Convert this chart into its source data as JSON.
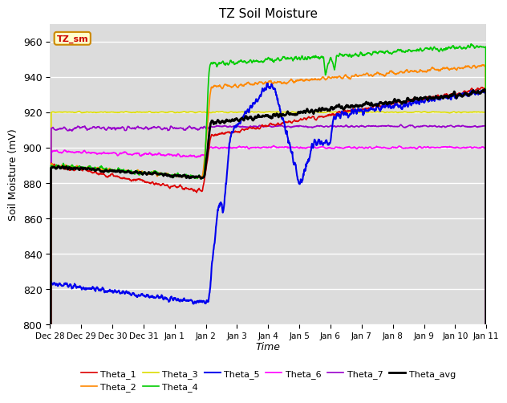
{
  "title": "TZ Soil Moisture",
  "ylabel": "Soil Moisture (mV)",
  "xlabel": "Time",
  "ylim": [
    800,
    970
  ],
  "yticks": [
    800,
    820,
    840,
    860,
    880,
    900,
    920,
    940,
    960
  ],
  "bg_color": "#dcdcdc",
  "fig_color": "#ffffff",
  "label_box": "TZ_sm",
  "series_order": [
    "Theta_1",
    "Theta_2",
    "Theta_3",
    "Theta_4",
    "Theta_5",
    "Theta_6",
    "Theta_7",
    "Theta_avg"
  ],
  "series": {
    "Theta_1": {
      "color": "#dd0000",
      "lw": 1.2
    },
    "Theta_2": {
      "color": "#ff8800",
      "lw": 1.2
    },
    "Theta_3": {
      "color": "#dddd00",
      "lw": 1.2
    },
    "Theta_4": {
      "color": "#00cc00",
      "lw": 1.2
    },
    "Theta_5": {
      "color": "#0000ee",
      "lw": 1.5
    },
    "Theta_6": {
      "color": "#ff00ff",
      "lw": 1.2
    },
    "Theta_7": {
      "color": "#9900cc",
      "lw": 1.2
    },
    "Theta_avg": {
      "color": "#000000",
      "lw": 2.0
    }
  },
  "legend_order": [
    "Theta_1",
    "Theta_2",
    "Theta_3",
    "Theta_4",
    "Theta_5",
    "Theta_6",
    "Theta_7",
    "Theta_avg"
  ],
  "xtick_labels": [
    "Dec 28",
    "Dec 29",
    "Dec 30",
    "Dec 31",
    "Jan 1",
    "Jan 2",
    "Jan 3",
    "Jan 4",
    "Jan 5",
    "Jan 6",
    "Jan 7",
    "Jan 8",
    "Jan 9",
    "Jan 10",
    "Jan 11"
  ]
}
